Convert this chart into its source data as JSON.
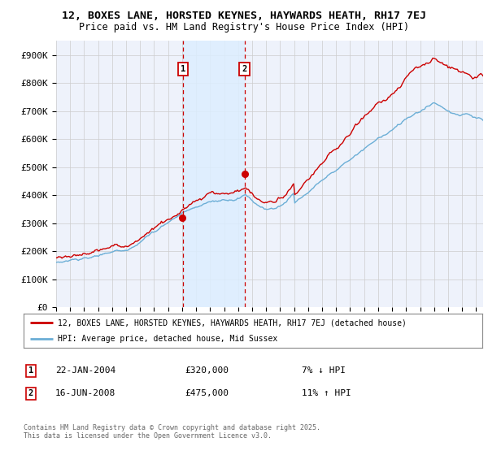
{
  "title_line1": "12, BOXES LANE, HORSTED KEYNES, HAYWARDS HEATH, RH17 7EJ",
  "title_line2": "Price paid vs. HM Land Registry's House Price Index (HPI)",
  "ylim": [
    0,
    950000
  ],
  "yticks": [
    0,
    100000,
    200000,
    300000,
    400000,
    500000,
    600000,
    700000,
    800000,
    900000
  ],
  "ytick_labels": [
    "£0",
    "£100K",
    "£200K",
    "£300K",
    "£400K",
    "£500K",
    "£600K",
    "£700K",
    "£800K",
    "£900K"
  ],
  "hpi_color": "#6baed6",
  "price_color": "#cc0000",
  "shade_color": "#ddeeff",
  "marker1_year": 2004.05,
  "marker1_value": 320000,
  "marker2_year": 2008.45,
  "marker2_value": 475000,
  "marker1_label": "1",
  "marker2_label": "2",
  "marker1_date_str": "22-JAN-2004",
  "marker1_price_str": "£320,000",
  "marker1_pct_str": "7% ↓ HPI",
  "marker2_date_str": "16-JUN-2008",
  "marker2_price_str": "£475,000",
  "marker2_pct_str": "11% ↑ HPI",
  "legend_label1": "12, BOXES LANE, HORSTED KEYNES, HAYWARDS HEATH, RH17 7EJ (detached house)",
  "legend_label2": "HPI: Average price, detached house, Mid Sussex",
  "footer_text": "Contains HM Land Registry data © Crown copyright and database right 2025.\nThis data is licensed under the Open Government Licence v3.0.",
  "bg_color": "#ffffff",
  "plot_bg_color": "#eef2fb",
  "grid_color": "#cccccc"
}
